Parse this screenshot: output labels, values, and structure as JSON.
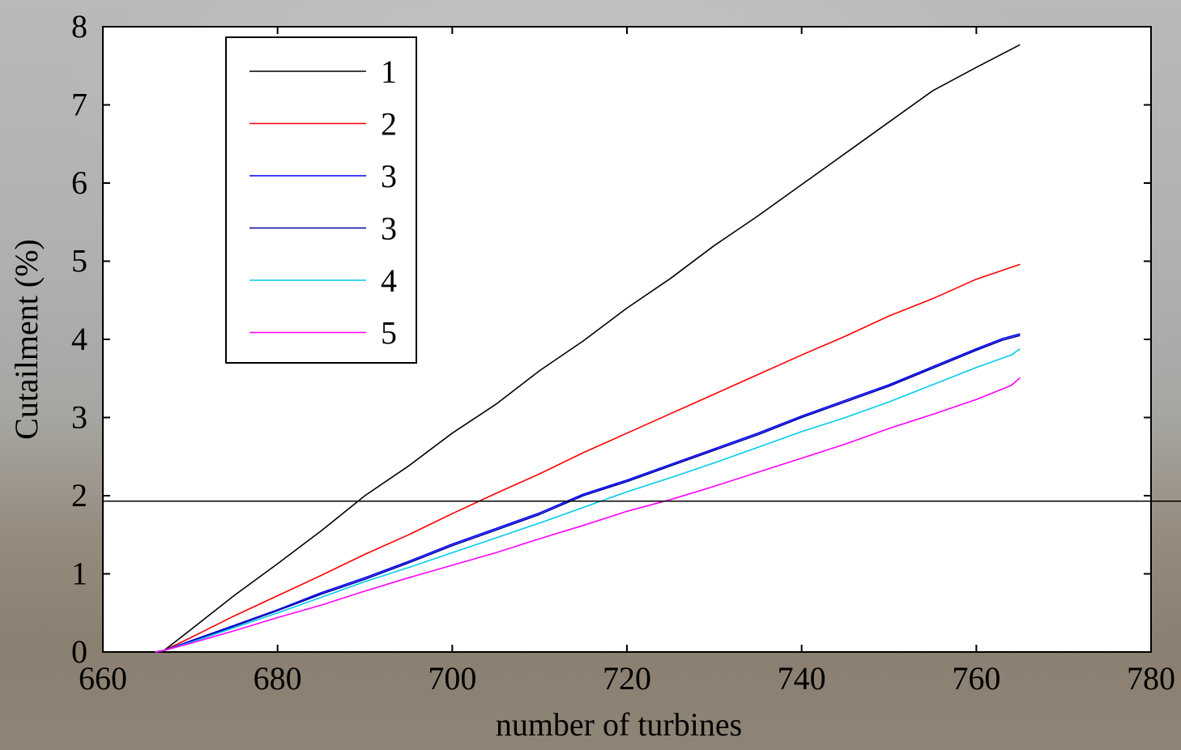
{
  "chart_data": {
    "type": "line",
    "xlabel": "number of turbines",
    "ylabel": "Cutailment (%)",
    "xlim": [
      660,
      780
    ],
    "ylim": [
      0,
      8
    ],
    "xticks": [
      "660",
      "680",
      "700",
      "720",
      "740",
      "760",
      "780"
    ],
    "yticks": [
      "0",
      "1",
      "2",
      "3",
      "4",
      "5",
      "6",
      "7",
      "8"
    ],
    "grid": false,
    "legend_position": "top-left",
    "reference_line": {
      "y": 1.93,
      "color": "#000000"
    },
    "series": [
      {
        "name": "1",
        "color": "#000000",
        "x": [
          666,
          667,
          670,
          675,
          680,
          685,
          690,
          695,
          700,
          705,
          710,
          715,
          720,
          725,
          730,
          735,
          740,
          745,
          750,
          755,
          760,
          765
        ],
        "y": [
          0,
          0.02,
          0.28,
          0.72,
          1.13,
          1.55,
          2.0,
          2.38,
          2.8,
          3.17,
          3.6,
          3.98,
          4.4,
          4.78,
          5.2,
          5.58,
          5.98,
          6.38,
          6.78,
          7.18,
          7.48,
          7.77
        ]
      },
      {
        "name": "2",
        "color": "#ff0000",
        "x": [
          666,
          667,
          670,
          675,
          680,
          685,
          690,
          695,
          700,
          705,
          710,
          715,
          720,
          725,
          730,
          735,
          740,
          745,
          750,
          755,
          760,
          765
        ],
        "y": [
          0,
          0.02,
          0.18,
          0.46,
          0.72,
          0.98,
          1.25,
          1.5,
          1.77,
          2.03,
          2.28,
          2.55,
          2.8,
          3.05,
          3.3,
          3.55,
          3.8,
          4.04,
          4.3,
          4.52,
          4.77,
          4.96
        ]
      },
      {
        "name": "3",
        "color": "#0000ff",
        "x": [
          666,
          667,
          670,
          675,
          680,
          685,
          690,
          695,
          700,
          705,
          710,
          715,
          720,
          725,
          730,
          735,
          740,
          745,
          750,
          755,
          760,
          763,
          765
        ],
        "y": [
          0,
          0.02,
          0.14,
          0.34,
          0.54,
          0.76,
          0.95,
          1.16,
          1.38,
          1.58,
          1.78,
          2.02,
          2.2,
          2.4,
          2.6,
          2.8,
          3.02,
          3.22,
          3.42,
          3.65,
          3.88,
          4.01,
          4.07
        ]
      },
      {
        "name": "3",
        "color": "#0000aa",
        "x": [
          666,
          667,
          670,
          675,
          680,
          685,
          690,
          695,
          700,
          705,
          710,
          715,
          720,
          725,
          730,
          735,
          740,
          745,
          750,
          755,
          760,
          763,
          765
        ],
        "y": [
          0,
          0.02,
          0.13,
          0.33,
          0.53,
          0.74,
          0.93,
          1.14,
          1.36,
          1.56,
          1.76,
          2.0,
          2.18,
          2.38,
          2.58,
          2.78,
          3.0,
          3.2,
          3.4,
          3.63,
          3.86,
          3.99,
          4.05
        ]
      },
      {
        "name": "4",
        "color": "#00ccee",
        "x": [
          666,
          667,
          670,
          675,
          680,
          685,
          690,
          695,
          700,
          705,
          710,
          715,
          720,
          725,
          730,
          735,
          740,
          745,
          750,
          755,
          760,
          764,
          765
        ],
        "y": [
          0,
          0.02,
          0.12,
          0.31,
          0.5,
          0.7,
          0.9,
          1.08,
          1.27,
          1.46,
          1.65,
          1.85,
          2.05,
          2.23,
          2.42,
          2.62,
          2.82,
          3.0,
          3.2,
          3.42,
          3.64,
          3.8,
          3.88
        ]
      },
      {
        "name": "5",
        "color": "#ff00ff",
        "x": [
          666,
          667,
          670,
          675,
          680,
          685,
          690,
          695,
          700,
          705,
          710,
          715,
          720,
          725,
          730,
          735,
          740,
          745,
          750,
          755,
          760,
          764,
          765
        ],
        "y": [
          0,
          0.02,
          0.11,
          0.27,
          0.44,
          0.6,
          0.78,
          0.95,
          1.11,
          1.27,
          1.45,
          1.62,
          1.8,
          1.95,
          2.12,
          2.3,
          2.48,
          2.66,
          2.86,
          3.04,
          3.23,
          3.41,
          3.51
        ]
      }
    ]
  }
}
